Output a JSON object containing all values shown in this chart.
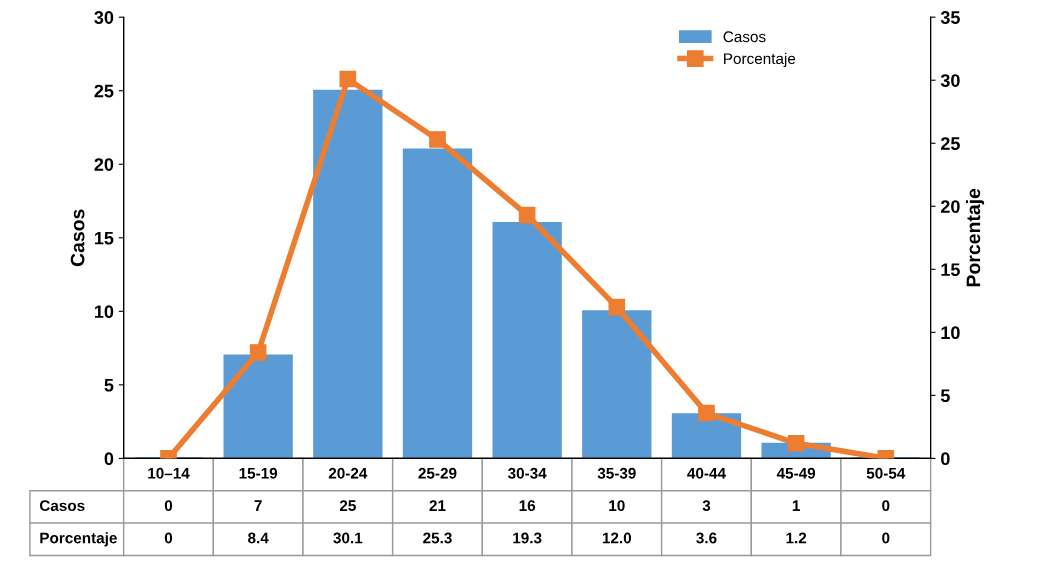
{
  "chart_data": {
    "type": "bar",
    "categories": [
      "10–14",
      "15-19",
      "20-24",
      "25-29",
      "30-34",
      "35-39",
      "40-44",
      "45-49",
      "50-54"
    ],
    "ylabel": "Casos",
    "y2label": "Porcentaje",
    "ylim": [
      0,
      30
    ],
    "yticks": [
      0,
      5,
      10,
      15,
      20,
      25,
      30
    ],
    "y2lim": [
      0,
      35
    ],
    "y2ticks": [
      0,
      5,
      10,
      15,
      20,
      25,
      30,
      35
    ],
    "series": [
      {
        "name": "Casos",
        "color": "#5b9bd5",
        "values": [
          0,
          7,
          25,
          21,
          16,
          10,
          3,
          1,
          0
        ],
        "value_labels": [
          "0",
          "7",
          "25",
          "21",
          "16",
          "10",
          "3",
          "1",
          "0"
        ]
      },
      {
        "name": "Porcentaje",
        "type": "line",
        "axis": "y2",
        "color": "#ed7d31",
        "marker": "square",
        "values": [
          0,
          8.4,
          30.1,
          25.3,
          19.3,
          12.0,
          3.6,
          1.2,
          0
        ],
        "value_labels": [
          "0",
          "8.4",
          "30.1",
          "25.3",
          "19.3",
          "12.0",
          "3.6",
          "1.2",
          "0"
        ]
      }
    ],
    "legend": "top right",
    "grid": false
  }
}
